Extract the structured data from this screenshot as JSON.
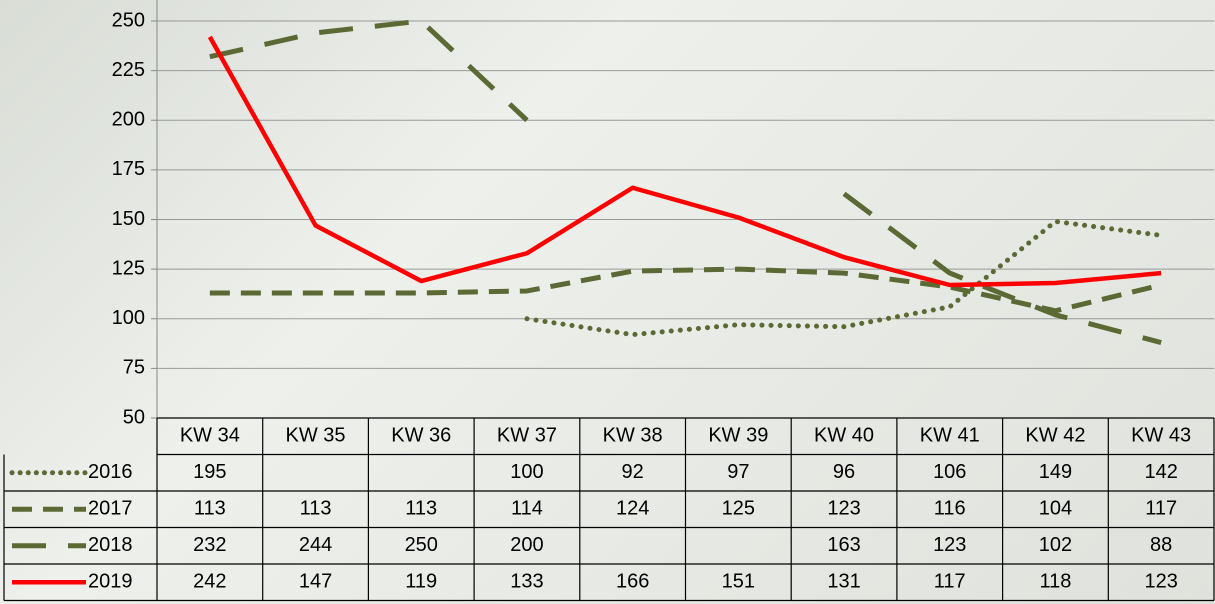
{
  "chart_data": {
    "type": "line",
    "categories": [
      "KW 34",
      "KW 35",
      "KW 36",
      "KW 37",
      "KW 38",
      "KW 39",
      "KW 40",
      "KW 41",
      "KW 42",
      "KW 43"
    ],
    "series": [
      {
        "name": "2016",
        "color": "#5b6a34",
        "style": "dotted",
        "values": [
          195,
          null,
          null,
          100,
          92,
          97,
          96,
          106,
          149,
          142
        ]
      },
      {
        "name": "2017",
        "color": "#5b6a34",
        "style": "dashed",
        "values": [
          113,
          113,
          113,
          114,
          124,
          125,
          123,
          116,
          104,
          117
        ]
      },
      {
        "name": "2018",
        "color": "#5b6a34",
        "style": "long-dash",
        "values": [
          232,
          244,
          250,
          200,
          null,
          null,
          163,
          123,
          102,
          88
        ]
      },
      {
        "name": "2019",
        "color": "#ff0000",
        "style": "solid",
        "values": [
          242,
          147,
          119,
          133,
          166,
          151,
          131,
          117,
          118,
          123
        ]
      }
    ],
    "ylim": [
      50,
      250
    ],
    "yticks": [
      50,
      75,
      100,
      125,
      150,
      175,
      200,
      225,
      250
    ],
    "grid": true,
    "data_table": true
  }
}
